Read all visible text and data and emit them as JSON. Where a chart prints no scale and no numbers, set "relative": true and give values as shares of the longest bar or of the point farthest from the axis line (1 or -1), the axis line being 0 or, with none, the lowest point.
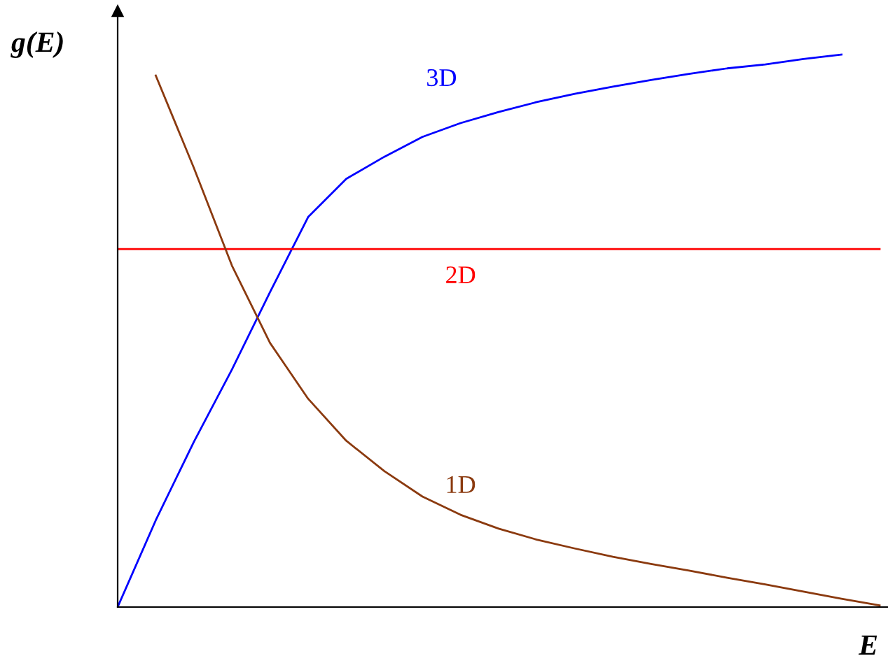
{
  "chart_data": {
    "type": "line",
    "relative": true,
    "xlabel": "E",
    "ylabel": "g(E)",
    "legend": false,
    "marker": "none",
    "line_style": "solid",
    "categories": [
      null,
      null,
      null,
      null,
      null,
      null,
      null,
      null,
      null,
      null,
      null,
      null,
      null,
      null,
      null,
      null,
      null,
      null,
      null,
      null,
      null
    ],
    "series": [
      {
        "name": "3D",
        "color": "#0000ff",
        "values": [
          0,
          0.157,
          0.299,
          0.43,
          0.57,
          0.706,
          0.775,
          0.815,
          0.851,
          0.876,
          0.896,
          0.914,
          0.929,
          0.942,
          0.954,
          0.965,
          0.975,
          0.982,
          0.992,
          1.0,
          null
        ]
      },
      {
        "name": "2D",
        "color": "#ff0000",
        "values": [
          0.648,
          0.648,
          0.648,
          0.648,
          0.648,
          0.648,
          0.648,
          0.648,
          0.648,
          0.648,
          0.648,
          0.648,
          0.648,
          0.648,
          0.648,
          0.648,
          0.648,
          0.648,
          0.648,
          0.648,
          0.648
        ]
      },
      {
        "name": "1D",
        "color": "#8b3a0f",
        "values": [
          null,
          0.962,
          0.795,
          0.618,
          0.478,
          0.377,
          0.301,
          0.246,
          0.2,
          0.167,
          0.142,
          0.122,
          0.106,
          0.091,
          0.078,
          0.066,
          0.053,
          0.041,
          0.028,
          0.015,
          0.003
        ]
      }
    ]
  }
}
